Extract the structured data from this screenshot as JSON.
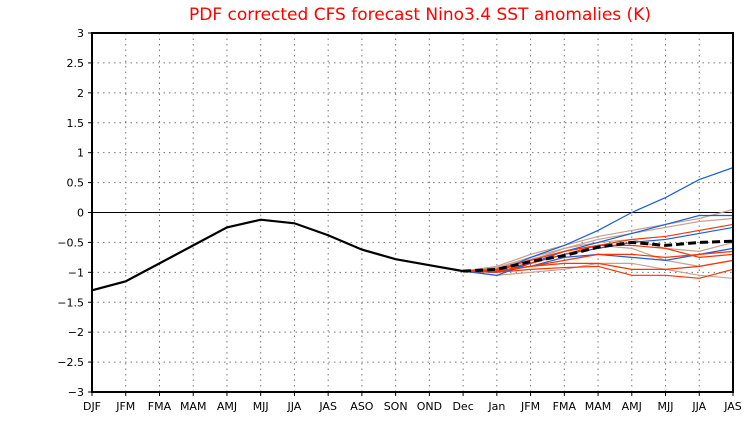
{
  "chart_data": {
    "type": "line",
    "title": "PDF corrected CFS forecast Nino3.4 SST anomalies (K)",
    "xlabel": "",
    "ylabel": "",
    "x": [
      "DJF",
      "JFM",
      "FMA",
      "MAM",
      "AMJ",
      "MJJ",
      "JJA",
      "JAS",
      "ASO",
      "SON",
      "OND",
      "Dec",
      "Jan",
      "JFM",
      "FMA",
      "MAM",
      "AMJ",
      "MJJ",
      "JJA",
      "JAS"
    ],
    "ylim": [
      -3,
      3
    ],
    "yticks": [
      "3",
      "2.5",
      "2",
      "1.5",
      "1",
      "0.5",
      "0",
      "-0.5",
      "-1",
      "-1.5",
      "-2",
      "-2.5",
      "-3"
    ],
    "grid": true,
    "colors": {
      "observed": "#000000",
      "mean": "#000000",
      "blue": "#1a5fd6",
      "red": "#ff3300",
      "tan": "#c8a090",
      "title": "#ff0000"
    },
    "observed": [
      -1.3,
      -1.15,
      -0.85,
      -0.55,
      -0.25,
      -0.12,
      -0.18,
      -0.38,
      -0.62,
      -0.78,
      -0.88,
      -0.98
    ],
    "ensemble_mean_start_index": 11,
    "ensemble_mean": [
      -0.98,
      -0.95,
      -0.82,
      -0.72,
      -0.58,
      -0.5,
      -0.55,
      -0.5,
      -0.48
    ],
    "members": [
      {
        "color": "blue",
        "values": [
          -0.98,
          -1.0,
          -0.75,
          -0.55,
          -0.3,
          0.0,
          0.25,
          0.55,
          0.75
        ]
      },
      {
        "color": "blue",
        "values": [
          -0.98,
          -1.05,
          -0.85,
          -0.65,
          -0.5,
          -0.35,
          -0.2,
          -0.05,
          -0.05
        ]
      },
      {
        "color": "blue",
        "values": [
          -0.98,
          -1.0,
          -0.9,
          -0.75,
          -0.7,
          -0.75,
          -0.8,
          -0.7,
          -0.6
        ]
      },
      {
        "color": "blue",
        "values": [
          -0.98,
          -1.0,
          -0.85,
          -0.7,
          -0.6,
          -0.5,
          -0.45,
          -0.35,
          -0.25
        ]
      },
      {
        "color": "tan",
        "values": [
          -0.98,
          -0.9,
          -0.7,
          -0.55,
          -0.4,
          -0.3,
          -0.2,
          -0.1,
          0.05
        ]
      },
      {
        "color": "tan",
        "values": [
          -0.98,
          -0.95,
          -0.8,
          -0.6,
          -0.45,
          -0.35,
          -0.25,
          -0.15,
          -0.1
        ]
      },
      {
        "color": "tan",
        "values": [
          -0.98,
          -1.05,
          -1.0,
          -0.95,
          -0.85,
          -0.85,
          -0.95,
          -1.05,
          -1.1
        ]
      },
      {
        "color": "tan",
        "values": [
          -0.98,
          -0.93,
          -0.78,
          -0.65,
          -0.55,
          -0.6,
          -0.8,
          -0.9,
          -0.8
        ]
      },
      {
        "color": "tan",
        "values": [
          -0.98,
          -0.92,
          -0.75,
          -0.6,
          -0.5,
          -0.45,
          -0.6,
          -0.65,
          -0.5
        ]
      },
      {
        "color": "red",
        "values": [
          -0.98,
          -1.0,
          -0.95,
          -0.92,
          -0.9,
          -1.05,
          -1.05,
          -1.1,
          -0.95
        ]
      },
      {
        "color": "red",
        "values": [
          -0.98,
          -0.98,
          -0.9,
          -0.85,
          -0.85,
          -0.95,
          -0.95,
          -0.9,
          -0.8
        ]
      },
      {
        "color": "red",
        "values": [
          -0.98,
          -0.95,
          -0.85,
          -0.7,
          -0.55,
          -0.45,
          -0.4,
          -0.3,
          -0.2
        ]
      },
      {
        "color": "red",
        "values": [
          -0.98,
          -0.97,
          -0.9,
          -0.8,
          -0.7,
          -0.7,
          -0.75,
          -0.7,
          -0.65
        ]
      },
      {
        "color": "red",
        "values": [
          -0.98,
          -0.95,
          -0.8,
          -0.65,
          -0.55,
          -0.55,
          -0.6,
          -0.75,
          -0.7
        ]
      }
    ]
  }
}
